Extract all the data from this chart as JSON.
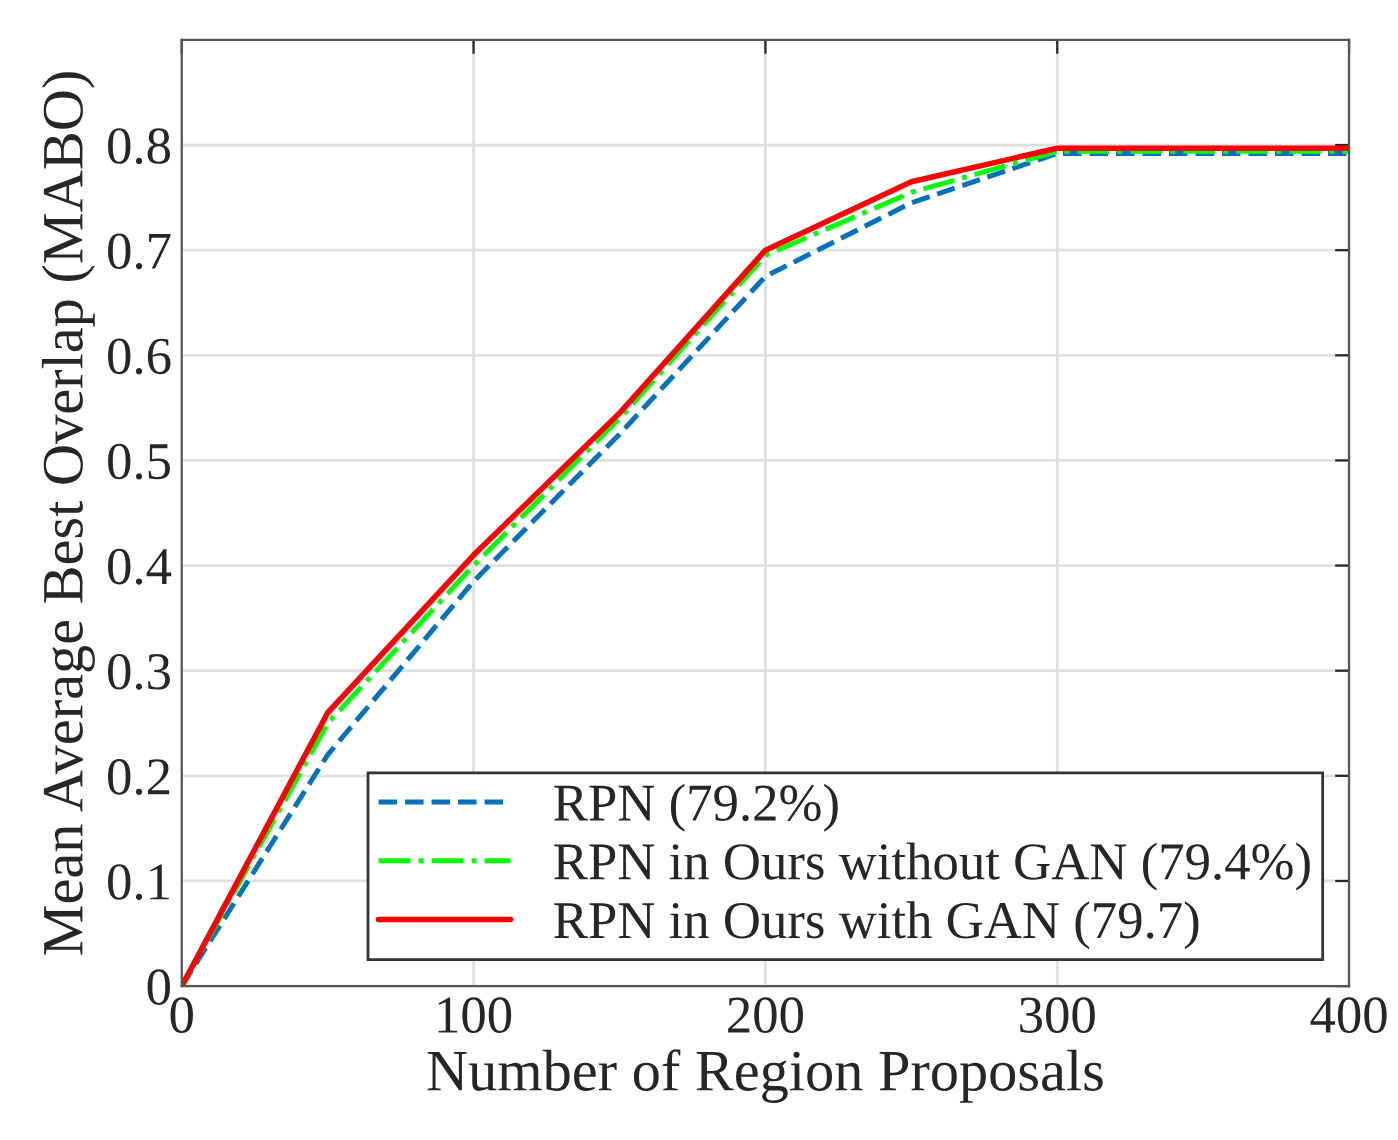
{
  "chart_data": {
    "type": "line",
    "xlabel": "Number of Region Proposals",
    "ylabel": "Mean Average Best Overlap (MABO)",
    "x": [
      0,
      50,
      100,
      150,
      200,
      250,
      300,
      350,
      400
    ],
    "series": [
      {
        "name": "RPN (79.2%)",
        "color": "#0072bd",
        "line_style": "dashed",
        "values": [
          0,
          0.22,
          0.385,
          0.525,
          0.675,
          0.745,
          0.792,
          0.792,
          0.792
        ]
      },
      {
        "name": "RPN in Ours without GAN (79.4%)",
        "color": "#00ff00",
        "line_style": "dashdot",
        "values": [
          0,
          0.25,
          0.4,
          0.54,
          0.695,
          0.755,
          0.794,
          0.794,
          0.794
        ]
      },
      {
        "name": "RPN in Ours with GAN (79.7)",
        "color": "#ff0000",
        "line_style": "solid",
        "values": [
          0,
          0.26,
          0.41,
          0.545,
          0.7,
          0.765,
          0.797,
          0.797,
          0.797
        ]
      }
    ],
    "xlim": [
      0,
      400
    ],
    "xticks": [
      0,
      100,
      200,
      300,
      400
    ],
    "ylim": [
      0,
      0.9
    ],
    "yticks": [
      0,
      0.1,
      0.2,
      0.3,
      0.4,
      0.5,
      0.6,
      0.7,
      0.8
    ],
    "grid": true,
    "legend": "bottom right",
    "marker": "none"
  }
}
